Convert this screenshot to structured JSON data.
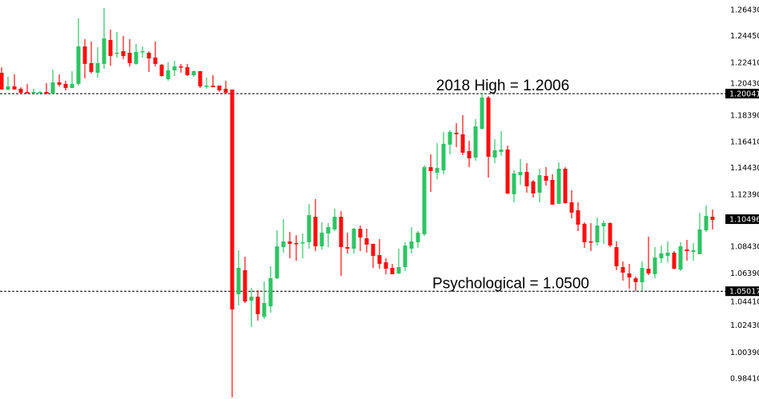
{
  "chart_data": {
    "type": "candlestick",
    "title": "",
    "xlabel": "",
    "ylabel": "",
    "ylim": [
      0.969,
      1.266
    ],
    "grid": false,
    "colors": {
      "up": "#2dc463",
      "down": "#ff0d0d",
      "text": "#000000",
      "tag_bg": "#000000"
    },
    "y_ticks": [
      "1.26430",
      "1.24450",
      "1.22410",
      "1.20430",
      "1.18390",
      "1.16410",
      "1.14430",
      "1.12390",
      "1.08430",
      "1.06390",
      "1.04410",
      "1.02430",
      "1.00390",
      "0.98410"
    ],
    "price_tags": [
      {
        "label": "1.20041",
        "value": 1.20041,
        "line": true
      },
      {
        "label": "1.10496",
        "value": 1.10496,
        "line": false
      },
      {
        "label": "1.05017",
        "value": 1.05017,
        "line": true
      }
    ],
    "annotations": [
      {
        "text": "2018 High = 1.2006",
        "value": 1.2006
      },
      {
        "text": "Psychological = 1.0500",
        "value": 1.05
      }
    ],
    "ohlc_fields": [
      "open",
      "high",
      "low",
      "close"
    ],
    "candles": [
      [
        1.2163,
        1.2205,
        1.2035,
        1.2035
      ],
      [
        1.2035,
        1.2132,
        1.2029,
        1.2059
      ],
      [
        1.2059,
        1.2151,
        1.2035,
        1.2035
      ],
      [
        1.2041,
        1.2053,
        1.1999,
        1.2011
      ],
      [
        1.2017,
        1.2078,
        1.2005,
        1.2011
      ],
      [
        1.2011,
        1.2041,
        1.2005,
        1.2017
      ],
      [
        1.2011,
        1.2023,
        1.2005,
        1.2017
      ],
      [
        1.2017,
        1.2084,
        1.1999,
        1.2005
      ],
      [
        1.2005,
        1.2187,
        1.1999,
        1.209
      ],
      [
        1.209,
        1.2151,
        1.2059,
        1.2072
      ],
      [
        1.2078,
        1.2102,
        1.2029,
        1.2047
      ],
      [
        1.2047,
        1.2175,
        1.2047,
        1.2078
      ],
      [
        1.2078,
        1.2576,
        1.2065,
        1.2363
      ],
      [
        1.2363,
        1.2418,
        1.212,
        1.223
      ],
      [
        1.2236,
        1.24,
        1.2157,
        1.2169
      ],
      [
        1.2163,
        1.2357,
        1.2126,
        1.2236
      ],
      [
        1.223,
        1.2655,
        1.2193,
        1.2424
      ],
      [
        1.2412,
        1.2491,
        1.2217,
        1.229
      ],
      [
        1.2309,
        1.2473,
        1.2278,
        1.2315
      ],
      [
        1.2327,
        1.2442,
        1.2266,
        1.229
      ],
      [
        1.2315,
        1.2418,
        1.2211,
        1.2236
      ],
      [
        1.223,
        1.2382,
        1.2224,
        1.2321
      ],
      [
        1.2321,
        1.2363,
        1.2278,
        1.2327
      ],
      [
        1.2315,
        1.2327,
        1.2169,
        1.2272
      ],
      [
        1.2278,
        1.24,
        1.2211,
        1.223
      ],
      [
        1.2224,
        1.223,
        1.2132,
        1.2138
      ],
      [
        1.2114,
        1.2242,
        1.2102,
        1.2181
      ],
      [
        1.2181,
        1.2254,
        1.2138,
        1.2211
      ],
      [
        1.2211,
        1.223,
        1.2163,
        1.2205
      ],
      [
        1.2205,
        1.223,
        1.2138,
        1.2144
      ],
      [
        1.2144,
        1.2181,
        1.2132,
        1.2175
      ],
      [
        1.2175,
        1.2175,
        1.2047,
        1.2059
      ],
      [
        1.2059,
        1.2126,
        1.2041,
        1.2065
      ],
      [
        1.2065,
        1.2144,
        1.2053,
        1.2053
      ],
      [
        1.2065,
        1.2065,
        1.2017,
        1.2029
      ],
      [
        1.2041,
        1.2102,
        1.2005,
        1.2011
      ],
      [
        1.2035,
        1.2035,
        0.9694,
        1.0363
      ],
      [
        1.0479,
        1.0813,
        1.0393,
        1.0679
      ],
      [
        1.0661,
        1.0764,
        1.0412,
        1.0424
      ],
      [
        1.043,
        1.0527,
        1.0229,
        1.046
      ],
      [
        1.046,
        1.0509,
        1.0278,
        1.0327
      ],
      [
        1.0308,
        1.0576,
        1.029,
        1.0412
      ],
      [
        1.0387,
        1.0691,
        1.0339,
        1.06
      ],
      [
        1.06,
        1.0965,
        1.0594,
        1.0843
      ],
      [
        1.0837,
        1.105,
        1.0795,
        1.088
      ],
      [
        1.088,
        1.0953,
        1.0752,
        1.0862
      ],
      [
        1.0868,
        1.0928,
        1.0734,
        1.0866
      ],
      [
        1.0868,
        1.0941,
        1.0752,
        1.0874
      ],
      [
        1.0874,
        1.1166,
        1.0825,
        1.108
      ],
      [
        1.1068,
        1.1202,
        1.0807,
        1.0843
      ],
      [
        1.0843,
        1.1026,
        1.0819,
        1.0947
      ],
      [
        1.0941,
        1.102,
        1.0837,
        1.0989
      ],
      [
        1.0971,
        1.1129,
        1.0959,
        1.1068
      ],
      [
        1.1068,
        1.1111,
        1.0618,
        1.0837
      ],
      [
        1.0837,
        1.0947,
        1.0789,
        1.0825
      ],
      [
        1.0825,
        1.0983,
        1.0789,
        1.0977
      ],
      [
        1.0977,
        1.1001,
        1.0807,
        1.091
      ],
      [
        1.0904,
        1.0977,
        1.0795,
        1.0856
      ],
      [
        1.0862,
        1.0862,
        1.0679,
        1.077
      ],
      [
        1.0776,
        1.0898,
        1.0673,
        1.071
      ],
      [
        1.0722,
        1.0752,
        1.0631,
        1.0673
      ],
      [
        1.0679,
        1.071,
        1.0631,
        1.0631
      ],
      [
        1.0637,
        1.0825,
        1.0631,
        1.0685
      ],
      [
        1.0685,
        1.0874,
        1.0655,
        1.0849
      ],
      [
        1.0825,
        1.0989,
        1.0789,
        1.088
      ],
      [
        1.0874,
        1.0959,
        1.0831,
        1.0947
      ],
      [
        1.0935,
        1.1457,
        1.0922,
        1.1445
      ],
      [
        1.1445,
        1.1543,
        1.1257,
        1.1415
      ],
      [
        1.1403,
        1.1628,
        1.1354,
        1.1439
      ],
      [
        1.1421,
        1.1713,
        1.1391,
        1.1622
      ],
      [
        1.1616,
        1.1725,
        1.1543,
        1.1713
      ],
      [
        1.1707,
        1.178,
        1.1597,
        1.1695
      ],
      [
        1.1695,
        1.184,
        1.1536,
        1.1555
      ],
      [
        1.1567,
        1.1646,
        1.1445,
        1.1512
      ],
      [
        1.1518,
        1.181,
        1.1494,
        1.1755
      ],
      [
        1.1737,
        1.2011,
        1.1731,
        1.1974
      ],
      [
        1.1974,
        1.1986,
        1.1366,
        1.1524
      ],
      [
        1.1518,
        1.1658,
        1.1476,
        1.1573
      ],
      [
        1.1561,
        1.1719,
        1.153,
        1.1579
      ],
      [
        1.1579,
        1.1609,
        1.1239,
        1.1245
      ],
      [
        1.1239,
        1.1421,
        1.1178,
        1.1397
      ],
      [
        1.1384,
        1.1506,
        1.1312,
        1.1409
      ],
      [
        1.1409,
        1.1476,
        1.1251,
        1.1299
      ],
      [
        1.1336,
        1.1348,
        1.1214,
        1.1245
      ],
      [
        1.1251,
        1.1433,
        1.1178,
        1.1384
      ],
      [
        1.1378,
        1.1445,
        1.1305,
        1.1342
      ],
      [
        1.1348,
        1.1391,
        1.116,
        1.116
      ],
      [
        1.1166,
        1.1482,
        1.1166,
        1.1433
      ],
      [
        1.1433,
        1.1445,
        1.1166,
        1.1172
      ],
      [
        1.1178,
        1.1269,
        1.1056,
        1.1099
      ],
      [
        1.1117,
        1.1178,
        1.0959,
        1.1008
      ],
      [
        1.1014,
        1.1026,
        1.0831,
        1.0874
      ],
      [
        1.088,
        1.102,
        1.0807,
        1.0874
      ],
      [
        1.0874,
        1.1062,
        1.0849,
        1.1001
      ],
      [
        1.0995,
        1.1038,
        1.0862,
        1.102
      ],
      [
        1.102,
        1.1026,
        1.0837,
        1.0849
      ],
      [
        1.0837,
        1.088,
        1.0661,
        1.0691
      ],
      [
        1.0685,
        1.0728,
        1.0582,
        1.0643
      ],
      [
        1.0637,
        1.071,
        1.0521,
        1.0606
      ],
      [
        1.06,
        1.0612,
        1.0503,
        1.057
      ],
      [
        1.057,
        1.0728,
        1.0503,
        1.0679
      ],
      [
        1.0673,
        1.0916,
        1.0624,
        1.0637
      ],
      [
        1.0631,
        1.0837,
        1.06,
        1.0758
      ],
      [
        1.0752,
        1.0849,
        1.0716,
        1.0789
      ],
      [
        1.077,
        1.088,
        1.0722,
        1.0795
      ],
      [
        1.0795,
        1.0807,
        1.0667,
        1.0673
      ],
      [
        1.0667,
        1.0874,
        1.0655,
        1.0843
      ],
      [
        1.0819,
        1.0892,
        1.0734,
        1.0807
      ],
      [
        1.0801,
        1.0868,
        1.0734,
        1.0813
      ],
      [
        1.0783,
        1.1099,
        1.0783,
        1.0971
      ],
      [
        1.0965,
        1.1153,
        1.0953,
        1.1074
      ],
      [
        1.1068,
        1.1123,
        1.0971,
        1.1044
      ]
    ]
  }
}
